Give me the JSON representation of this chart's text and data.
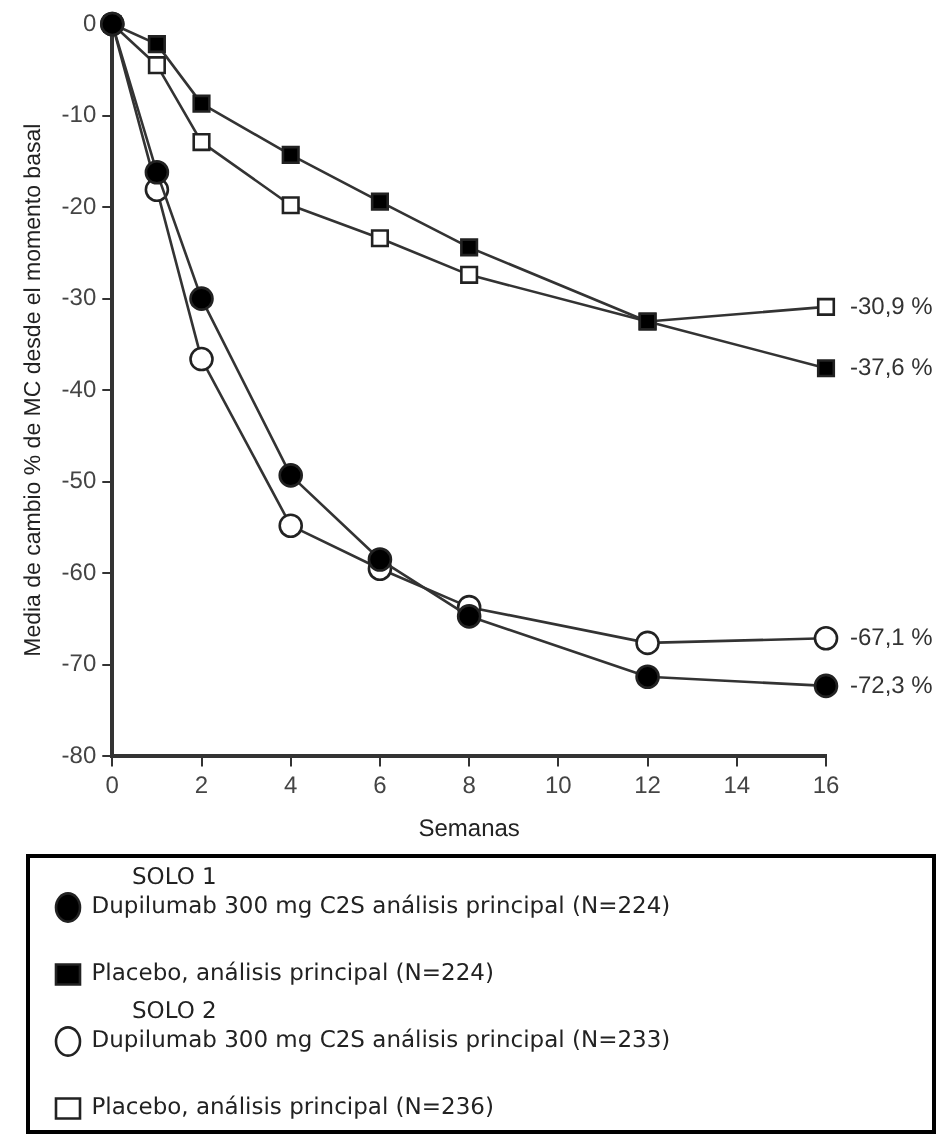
{
  "chart_data": {
    "type": "line",
    "xlabel": "Semanas",
    "ylabel": "Media de cambio % de MC desde el momento basal",
    "x": [
      0,
      1,
      2,
      4,
      6,
      8,
      12,
      16
    ],
    "series": [
      {
        "name": "Dupilumab 300 mg C2S análisis principal (N=224)",
        "color": "#000000",
        "marker": "circle",
        "values": [
          0,
          -16.2,
          -30,
          -49.3,
          -58.5,
          -64.7,
          -71.3,
          -72.3
        ],
        "value_labels": [
          null,
          null,
          null,
          null,
          null,
          null,
          null,
          "-72,3 %"
        ]
      },
      {
        "name": "Placebo, análisis principal (N=224)",
        "color": "#000000",
        "marker": "square",
        "values": [
          0,
          -2.2,
          -8.7,
          -14.3,
          -19.4,
          -24.4,
          -32.5,
          -37.6
        ],
        "value_labels": [
          null,
          null,
          null,
          null,
          null,
          null,
          null,
          "-37,6 %"
        ]
      },
      {
        "name": "Dupilumab 300 mg C2S análisis principal (N=233)",
        "color": "#ffffff",
        "marker": "circle",
        "values": [
          0,
          -18.1,
          -36.6,
          -54.8,
          -59.5,
          -63.7,
          -67.6,
          -67.1
        ],
        "value_labels": [
          null,
          null,
          null,
          null,
          null,
          null,
          null,
          "-67,1 %"
        ]
      },
      {
        "name": "Placebo, análisis principal (N=236)",
        "color": "#ffffff",
        "marker": "square",
        "values": [
          0,
          -4.5,
          -12.9,
          -19.8,
          -23.4,
          -27.4,
          -32.5,
          -30.9
        ],
        "value_labels": [
          null,
          null,
          null,
          null,
          null,
          null,
          null,
          "-30,9 %"
        ]
      }
    ],
    "annotations": [
      "SOLO 1",
      "SOLO 2"
    ],
    "xlim": [
      0,
      16
    ],
    "xticks": [
      0,
      2,
      4,
      6,
      8,
      10,
      12,
      14,
      16
    ],
    "ylim": [
      -80,
      0
    ],
    "yticks": [
      -80,
      -70,
      -60,
      -50,
      -40,
      -30,
      -20,
      -10,
      0
    ],
    "grid": false,
    "legend": "bottom"
  }
}
